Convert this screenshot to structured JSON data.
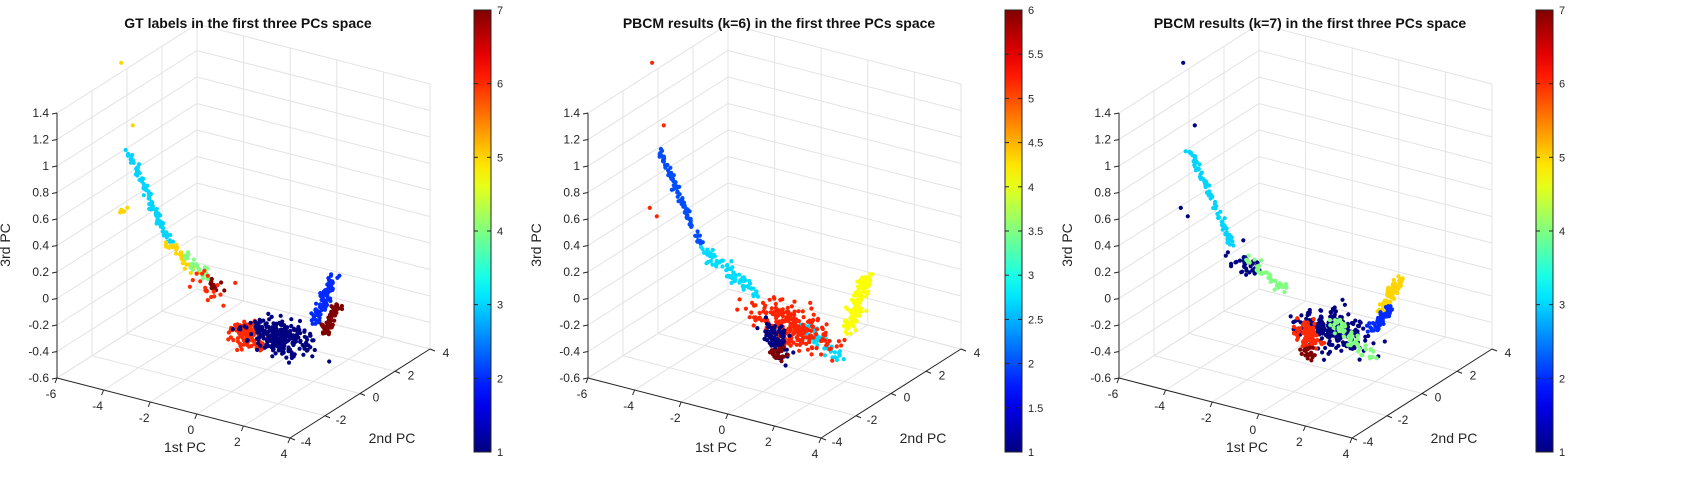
{
  "chart_data": [
    {
      "type": "scatter",
      "title": "GT labels in the first three PCs space",
      "xlabel": "1st PC",
      "ylabel": "2nd PC",
      "zlabel": "3rd PC",
      "xlim": [
        -6,
        4
      ],
      "ylim": [
        -4,
        4
      ],
      "zlim": [
        -0.6,
        1.4
      ],
      "xticks": [
        "-6",
        "-4",
        "-2",
        "0",
        "2",
        "4"
      ],
      "yticks": [
        "-4",
        "-2",
        "0",
        "2",
        "4"
      ],
      "zticks": [
        "-0.6",
        "-0.4",
        "-0.2",
        "0",
        "0.2",
        "0.4",
        "0.6",
        "0.8",
        "1",
        "1.2",
        "1.4"
      ],
      "grid": true,
      "colorbar": {
        "min": 1,
        "max": 7,
        "ticks": [
          "1",
          "2",
          "3",
          "4",
          "5",
          "6",
          "7"
        ]
      },
      "clusters": [
        {
          "label": 3,
          "kind": "line",
          "x": [
            -5.2,
            -3.4
          ],
          "y": [
            -1.0,
            -1.0
          ],
          "z": [
            0.9,
            0.28
          ],
          "n": 90,
          "spread": [
            0.1,
            0.1,
            0.02
          ]
        },
        {
          "label": 5,
          "kind": "line",
          "x": [
            -3.4,
            -2.4
          ],
          "y": [
            -1.0,
            -1.0
          ],
          "z": [
            0.28,
            0.12
          ],
          "n": 40,
          "spread": [
            0.15,
            0.15,
            0.03
          ]
        },
        {
          "label": 5,
          "kind": "blob",
          "x": [
            -5.6,
            -5.3
          ],
          "y": [
            -1.0,
            -1.0
          ],
          "z": [
            0.5,
            0.4
          ],
          "n": 6,
          "spread": [
            0.2,
            0.2,
            0.03
          ]
        },
        {
          "label": 5,
          "kind": "points",
          "pts": [
            [
              -5.5,
              -1.0,
              1.55
            ],
            [
              -5.0,
              -1.0,
              1.1
            ]
          ]
        },
        {
          "label": 4,
          "kind": "line",
          "x": [
            -2.8,
            -1.6
          ],
          "y": [
            -1.0,
            -1.0
          ],
          "z": [
            0.25,
            0.05
          ],
          "n": 30,
          "spread": [
            0.15,
            0.15,
            0.03
          ]
        },
        {
          "label": 7,
          "kind": "blob",
          "x": [
            -1.8,
            -1.2
          ],
          "y": [
            -1.0,
            -1.0
          ],
          "z": [
            0.05,
            0.02
          ],
          "n": 14,
          "spread": [
            0.2,
            0.2,
            0.04
          ]
        },
        {
          "label": 6,
          "kind": "blob",
          "x": [
            -0.6,
            0.4
          ],
          "y": [
            -1.0,
            -1.0
          ],
          "z": [
            -0.15,
            -0.35
          ],
          "n": 120,
          "spread": [
            0.45,
            0.45,
            0.08
          ]
        },
        {
          "label": 6,
          "kind": "blob",
          "x": [
            -2.4,
            -1.0
          ],
          "y": [
            -1.0,
            -1.0
          ],
          "z": [
            0.05,
            -0.05
          ],
          "n": 18,
          "spread": [
            0.5,
            0.5,
            0.08
          ]
        },
        {
          "label": 1,
          "kind": "blob",
          "x": [
            0.2,
            2.5
          ],
          "y": [
            -1.0,
            -1.0
          ],
          "z": [
            -0.15,
            -0.25
          ],
          "n": 260,
          "spread": [
            0.7,
            0.7,
            0.07
          ]
        },
        {
          "label": 2,
          "kind": "line",
          "x": [
            2.8,
            3.6
          ],
          "y": [
            -1.0,
            -1.0
          ],
          "z": [
            -0.05,
            0.35
          ],
          "n": 90,
          "spread": [
            0.18,
            0.18,
            0.03
          ]
        },
        {
          "label": 7,
          "kind": "line",
          "x": [
            3.2,
            3.8
          ],
          "y": [
            -1.0,
            -1.0
          ],
          "z": [
            -0.1,
            0.15
          ],
          "n": 60,
          "spread": [
            0.15,
            0.15,
            0.03
          ]
        }
      ]
    },
    {
      "type": "scatter",
      "title": "PBCM results (k=6) in the first three PCs space",
      "xlabel": "1st PC",
      "ylabel": "2nd PC",
      "zlabel": "3rd PC",
      "xlim": [
        -6,
        4
      ],
      "ylim": [
        -4,
        4
      ],
      "zlim": [
        -0.6,
        1.4
      ],
      "xticks": [
        "-6",
        "-4",
        "-2",
        "0",
        "2",
        "4"
      ],
      "yticks": [
        "-4",
        "-2",
        "0",
        "2",
        "4"
      ],
      "zticks": [
        "-0.6",
        "-0.4",
        "-0.2",
        "0",
        "0.2",
        "0.4",
        "0.6",
        "0.8",
        "1",
        "1.2",
        "1.4"
      ],
      "grid": true,
      "colorbar": {
        "min": 1,
        "max": 6,
        "ticks": [
          "1",
          "1.5",
          "2",
          "2.5",
          "3",
          "3.5",
          "4",
          "4.5",
          "5",
          "5.5",
          "6"
        ]
      },
      "clusters": [
        {
          "label": 2,
          "kind": "line",
          "x": [
            -5.2,
            -3.4
          ],
          "y": [
            -1.0,
            -1.0
          ],
          "z": [
            0.9,
            0.28
          ],
          "n": 90,
          "spread": [
            0.1,
            0.1,
            0.02
          ]
        },
        {
          "label": 2.7,
          "kind": "line",
          "x": [
            -3.4,
            -1.0
          ],
          "y": [
            -1.0,
            -1.0
          ],
          "z": [
            0.25,
            0.0
          ],
          "n": 80,
          "spread": [
            0.2,
            0.2,
            0.04
          ]
        },
        {
          "label": 2.7,
          "kind": "line",
          "x": [
            1.0,
            2.6
          ],
          "y": [
            -1.0,
            -1.0
          ],
          "z": [
            -0.15,
            -0.3
          ],
          "n": 60,
          "spread": [
            0.2,
            0.2,
            0.04
          ]
        },
        {
          "label": 5.2,
          "kind": "blob",
          "x": [
            -1.5,
            2.5
          ],
          "y": [
            -1.0,
            -1.0
          ],
          "z": [
            -0.05,
            -0.3
          ],
          "n": 230,
          "spread": [
            0.8,
            0.8,
            0.08
          ]
        },
        {
          "label": 5.2,
          "kind": "points",
          "pts": [
            [
              -5.5,
              -1.0,
              1.55
            ],
            [
              -5.0,
              -1.0,
              1.1
            ],
            [
              -5.6,
              -1.0,
              0.45
            ],
            [
              -5.3,
              -1.0,
              0.4
            ]
          ]
        },
        {
          "label": 1,
          "kind": "blob",
          "x": [
            -0.6,
            0.3
          ],
          "y": [
            -1.0,
            -1.0
          ],
          "z": [
            -0.2,
            -0.4
          ],
          "n": 90,
          "spread": [
            0.3,
            0.3,
            0.07
          ]
        },
        {
          "label": 6,
          "kind": "blob",
          "x": [
            -0.3,
            0.2
          ],
          "y": [
            -1.0,
            -1.0
          ],
          "z": [
            -0.35,
            -0.45
          ],
          "n": 20,
          "spread": [
            0.2,
            0.2,
            0.03
          ]
        },
        {
          "label": 4.1,
          "kind": "line",
          "x": [
            2.9,
            3.7
          ],
          "y": [
            -1.0,
            -1.0
          ],
          "z": [
            -0.1,
            0.35
          ],
          "n": 130,
          "spread": [
            0.22,
            0.22,
            0.04
          ]
        }
      ]
    },
    {
      "type": "scatter",
      "title": "PBCM results (k=7) in the first three PCs space",
      "xlabel": "1st PC",
      "ylabel": "2nd PC",
      "zlabel": "3rd PC",
      "xlim": [
        -6,
        4
      ],
      "ylim": [
        -4,
        4
      ],
      "zlim": [
        -0.6,
        1.4
      ],
      "xticks": [
        "-6",
        "-4",
        "-2",
        "0",
        "2",
        "4"
      ],
      "yticks": [
        "-4",
        "-2",
        "0",
        "2",
        "4"
      ],
      "zticks": [
        "-0.6",
        "-0.4",
        "-0.2",
        "0",
        "0.2",
        "0.4",
        "0.6",
        "0.8",
        "1",
        "1.2",
        "1.4"
      ],
      "grid": true,
      "colorbar": {
        "min": 1,
        "max": 7,
        "ticks": [
          "1",
          "2",
          "3",
          "4",
          "5",
          "6",
          "7"
        ]
      },
      "clusters": [
        {
          "label": 3,
          "kind": "line",
          "x": [
            -5.2,
            -3.4
          ],
          "y": [
            -1.0,
            -1.0
          ],
          "z": [
            0.9,
            0.28
          ],
          "n": 90,
          "spread": [
            0.1,
            0.1,
            0.02
          ]
        },
        {
          "label": 1,
          "kind": "blob",
          "x": [
            -3.4,
            -2.0
          ],
          "y": [
            -1.0,
            -1.0
          ],
          "z": [
            0.25,
            0.05
          ],
          "n": 40,
          "spread": [
            0.35,
            0.35,
            0.05
          ]
        },
        {
          "label": 1,
          "kind": "points",
          "pts": [
            [
              -5.5,
              -1.0,
              1.55
            ],
            [
              -5.0,
              -1.0,
              1.1
            ],
            [
              -5.6,
              -1.0,
              0.45
            ],
            [
              -5.3,
              -1.0,
              0.4
            ]
          ]
        },
        {
          "label": 4,
          "kind": "line",
          "x": [
            -2.8,
            -1.0
          ],
          "y": [
            -1.0,
            -1.0
          ],
          "z": [
            0.22,
            0.02
          ],
          "n": 40,
          "spread": [
            0.18,
            0.18,
            0.03
          ]
        },
        {
          "label": 1,
          "kind": "blob",
          "x": [
            -0.5,
            2.3
          ],
          "y": [
            -1.0,
            -1.0
          ],
          "z": [
            -0.1,
            -0.25
          ],
          "n": 230,
          "spread": [
            0.8,
            0.8,
            0.08
          ]
        },
        {
          "label": 4,
          "kind": "line",
          "x": [
            1.0,
            2.6
          ],
          "y": [
            -1.0,
            -1.0
          ],
          "z": [
            -0.1,
            -0.32
          ],
          "n": 60,
          "spread": [
            0.2,
            0.2,
            0.04
          ]
        },
        {
          "label": 6,
          "kind": "blob",
          "x": [
            -0.6,
            0.3
          ],
          "y": [
            -1.0,
            -1.0
          ],
          "z": [
            -0.15,
            -0.35
          ],
          "n": 80,
          "spread": [
            0.3,
            0.3,
            0.07
          ]
        },
        {
          "label": 7,
          "kind": "blob",
          "x": [
            -0.4,
            0.2
          ],
          "y": [
            -1.0,
            -1.0
          ],
          "z": [
            -0.35,
            -0.45
          ],
          "n": 22,
          "spread": [
            0.2,
            0.2,
            0.03
          ]
        },
        {
          "label": 5,
          "kind": "line",
          "x": [
            3.0,
            3.8
          ],
          "y": [
            -1.0,
            -1.0
          ],
          "z": [
            0.05,
            0.35
          ],
          "n": 80,
          "spread": [
            0.18,
            0.18,
            0.03
          ]
        },
        {
          "label": 2,
          "kind": "line",
          "x": [
            2.6,
            3.4
          ],
          "y": [
            -1.0,
            -1.0
          ],
          "z": [
            -0.1,
            0.1
          ],
          "n": 60,
          "spread": [
            0.18,
            0.18,
            0.03
          ]
        }
      ]
    }
  ]
}
